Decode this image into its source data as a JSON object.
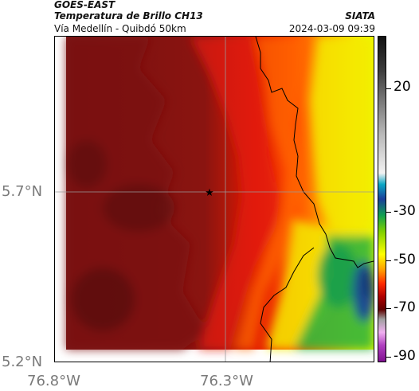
{
  "header": {
    "satellite": "GOES-EAST",
    "product": "Temperatura de Brillo CH13",
    "area": "Vía Medellín - Quibdó 50km",
    "organization": "SIATA",
    "datetime": "2024-03-09 09:39"
  },
  "axes": {
    "lat_labels": [
      "5.7°N",
      "5.2°N"
    ],
    "lon_labels": [
      "76.8°W",
      "76.3°W"
    ]
  },
  "colorbar": {
    "ticks": [
      "20",
      "-30",
      "-50",
      "-70",
      "-90"
    ],
    "range": [
      -90,
      40
    ]
  },
  "map": {
    "marker": "star-marker",
    "gridlines": true,
    "colors": {
      "dark_red": "#7a1010",
      "red": "#e51400",
      "orange": "#ff7a00",
      "yellow": "#f6f000",
      "green": "#1fb03a",
      "blue": "#1b4d92"
    }
  }
}
